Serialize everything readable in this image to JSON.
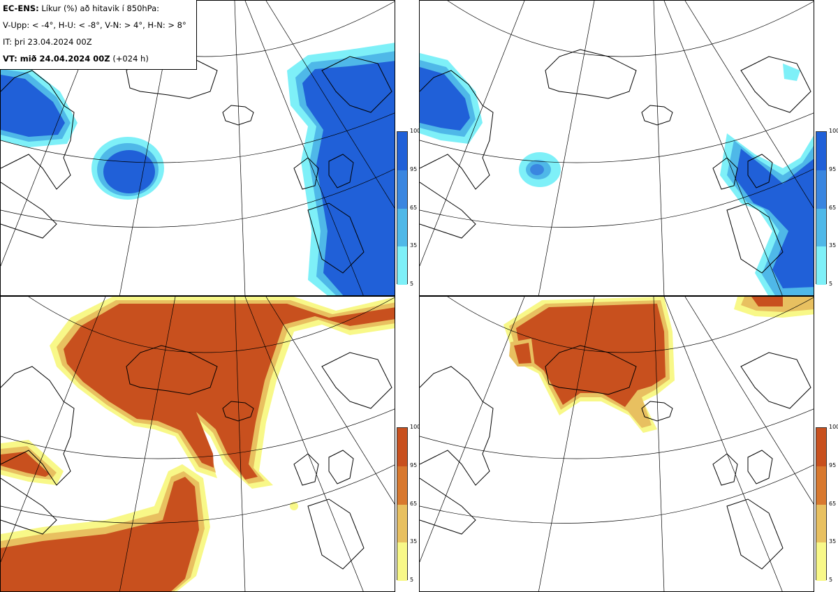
{
  "header": {
    "model": "EC-ENS:",
    "description": "Líkur (%) að hitavik í 850hPa:",
    "thresholds": "V-Upp: < -4°, H-U: < -8°, V-N: > 4°, H-N: > 8°",
    "initial_time": "IT: þri 23.04.2024 00Z",
    "valid_label": "VT: mið 24.04.2024 00Z",
    "lead_time": "(+024 h)"
  },
  "panels": [
    {
      "id": "v-upp",
      "name": "V-Upp",
      "palette": "blue"
    },
    {
      "id": "h-u",
      "name": "H-U",
      "palette": "blue"
    },
    {
      "id": "v-n",
      "name": "V-N",
      "palette": "orange"
    },
    {
      "id": "h-n",
      "name": "H-N",
      "palette": "orange"
    }
  ],
  "legend": {
    "ticks": [
      "100",
      "95",
      "65",
      "35",
      "5"
    ],
    "blue_colors": [
      "#2060d8",
      "#3a86e0",
      "#4fb8e8",
      "#7ef0f8"
    ],
    "orange_colors": [
      "#c8501e",
      "#d8782e",
      "#e8c060",
      "#f8f888"
    ]
  },
  "colors": {
    "coast": "#000000",
    "grid": "#000000",
    "blue_dark": "#2060d8",
    "blue_mid": "#3a86e0",
    "blue_light": "#4fb8e8",
    "blue_pale": "#7ef0f8",
    "orange_dark": "#c8501e",
    "orange_mid": "#d8782e",
    "orange_light": "#e8c060",
    "orange_pale": "#f8f888"
  }
}
